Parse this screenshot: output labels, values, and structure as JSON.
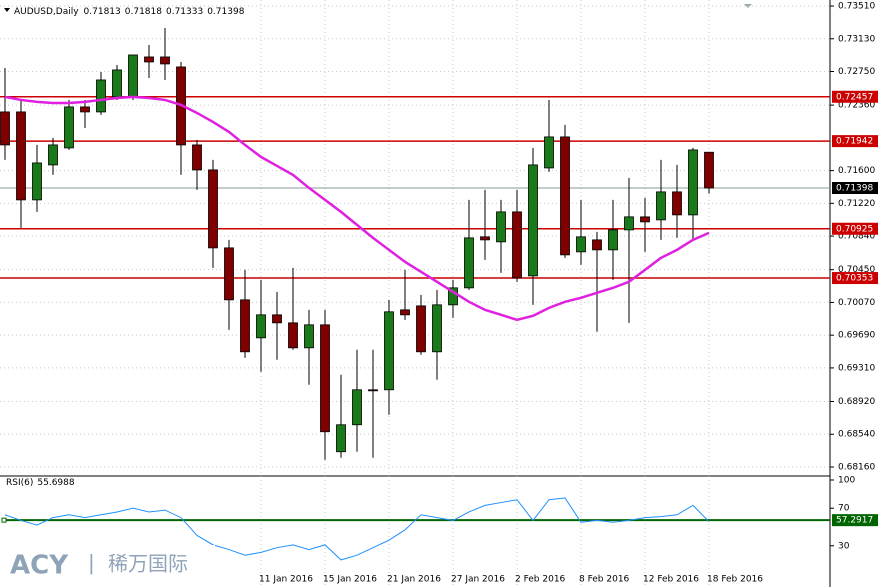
{
  "chart_data": {
    "type": "candlestick",
    "title": "AUDUSD,Daily",
    "categories": [
      null,
      null,
      null,
      null,
      null,
      null,
      null,
      null,
      null,
      null,
      null,
      null,
      null,
      null,
      null,
      null,
      "11 Jan 2016",
      null,
      null,
      null,
      "15 Jan 2016",
      null,
      null,
      null,
      "21 Jan 2016",
      null,
      null,
      null,
      "27 Jan 2016",
      null,
      null,
      null,
      "2 Feb 2016",
      null,
      null,
      null,
      "8 Feb 2016",
      null,
      null,
      null,
      "12 Feb 2016",
      null,
      null,
      null,
      "18 Feb 2016"
    ],
    "series": {
      "open": [
        0.72281,
        0.72281,
        0.7126,
        0.71666,
        0.71863,
        0.72339,
        0.72281,
        0.72455,
        0.72455,
        0.72919,
        0.72919,
        0.72803,
        0.71898,
        0.71608,
        0.70703,
        0.701,
        0.69659,
        0.69926,
        0.69833,
        0.69543,
        0.6981,
        0.68337,
        0.6865,
        0.69056,
        0.69056,
        0.69984,
        0.7003,
        0.69497,
        0.70042,
        0.70239,
        0.70831,
        0.70773,
        0.71121,
        0.70378,
        0.71631,
        0.71991,
        0.70657,
        0.70796,
        0.7068,
        0.70912,
        0.71063,
        0.71028,
        0.71353,
        0.71086,
        0.71813
      ],
      "high": [
        0.72791,
        0.7242,
        0.71898,
        0.71979,
        0.7242,
        0.7242,
        0.72745,
        0.72826,
        0.72942,
        0.73058,
        0.73255,
        0.72861,
        0.71956,
        0.71724,
        0.70796,
        0.70448,
        0.70332,
        0.70193,
        0.70471,
        0.69984,
        0.69984,
        0.6923,
        0.6952,
        0.6952,
        0.701,
        0.70448,
        0.70158,
        0.70216,
        0.70332,
        0.7126,
        0.71376,
        0.7126,
        0.71376,
        0.71863,
        0.7242,
        0.7213,
        0.7126,
        0.70889,
        0.7126,
        0.71515,
        0.71283,
        0.71724,
        0.71666,
        0.71863,
        0.71818
      ],
      "low": [
        0.71724,
        0.70935,
        0.71121,
        0.7155,
        0.7184,
        0.72095,
        0.72246,
        0.7242,
        0.7242,
        0.72675,
        0.72652,
        0.7155,
        0.71376,
        0.70471,
        0.69752,
        0.69427,
        0.69265,
        0.69404,
        0.6952,
        0.69114,
        0.68244,
        0.68267,
        0.68337,
        0.68267,
        0.68766,
        0.69868,
        0.69462,
        0.69172,
        0.69891,
        0.70216,
        0.70564,
        0.70413,
        0.70309,
        0.70042,
        0.71585,
        0.70587,
        0.70506,
        0.69729,
        0.70332,
        0.69833,
        0.70657,
        0.70796,
        0.70819,
        0.70796,
        0.71333
      ],
      "close": [
        0.71898,
        0.7126,
        0.71689,
        0.71898,
        0.72339,
        0.72281,
        0.72652,
        0.72768,
        0.72942,
        0.72861,
        0.72838,
        0.71898,
        0.71608,
        0.70703,
        0.701,
        0.69497,
        0.69926,
        0.69833,
        0.69543,
        0.6981,
        0.68569,
        0.6865,
        0.69056,
        0.69044,
        0.69961,
        0.69926,
        0.69497,
        0.70042,
        0.70239,
        0.70819,
        0.70796,
        0.71121,
        0.70355,
        0.71666,
        0.71991,
        0.70622,
        0.70831,
        0.7068,
        0.70912,
        0.71063,
        0.71005,
        0.71353,
        0.71086,
        0.7184,
        0.71398
      ],
      "up_color": "#1a7a1a",
      "down_color": "#800000"
    },
    "overlay": {
      "color": "#e020e0",
      "values": [
        0.72455,
        0.7242,
        0.72397,
        0.72385,
        0.72385,
        0.72397,
        0.7242,
        0.72443,
        0.72455,
        0.72443,
        0.7242,
        0.72362,
        0.72269,
        0.72165,
        0.72049,
        0.71898,
        0.71759,
        0.71654,
        0.7155,
        0.71399,
        0.7126,
        0.71121,
        0.7097,
        0.70819,
        0.7068,
        0.70541,
        0.70425,
        0.70309,
        0.70193,
        0.70077,
        0.69984,
        0.69926,
        0.69868,
        0.69914,
        0.70007,
        0.70077,
        0.70123,
        0.70181,
        0.70239,
        0.70309,
        0.70448,
        0.70587,
        0.7068,
        0.70796,
        0.70877
      ]
    },
    "ylim": [
      0.68067,
      0.7358
    ],
    "yticks": [
      {
        "value": 0.7351,
        "label": "0.73510"
      },
      {
        "value": 0.7313,
        "label": "0.73130"
      },
      {
        "value": 0.7275,
        "label": "0.72750"
      },
      {
        "value": 0.7236,
        "label": "0.72360"
      },
      {
        "value": 0.716,
        "label": "0.71600"
      },
      {
        "value": 0.7122,
        "label": "0.71220"
      },
      {
        "value": 0.7084,
        "label": "0.70840"
      },
      {
        "value": 0.7045,
        "label": "0.70450"
      },
      {
        "value": 0.7007,
        "label": "0.70070"
      },
      {
        "value": 0.6969,
        "label": "0.69690"
      },
      {
        "value": 0.6931,
        "label": "0.69310"
      },
      {
        "value": 0.6892,
        "label": "0.68920"
      },
      {
        "value": 0.6854,
        "label": "0.68540"
      },
      {
        "value": 0.6816,
        "label": "0.68160"
      }
    ],
    "levels": [
      {
        "value": 0.72457,
        "color": "#cc0000"
      },
      {
        "value": 0.71942,
        "color": "#cc0000"
      },
      {
        "value": 0.70925,
        "color": "#cc0000"
      },
      {
        "value": 0.70353,
        "color": "#cc0000"
      }
    ],
    "grid": true,
    "rsi": {
      "label": "RSI(6)",
      "color": "#1e90ff",
      "ylim": [
        0,
        100
      ],
      "yticks": [
        100,
        70,
        30
      ],
      "level": 57.2917,
      "level_color": "#006400",
      "values": [
        63,
        57,
        52,
        60,
        63,
        60,
        63,
        66,
        70,
        66,
        68,
        60,
        41,
        31,
        26,
        20,
        23,
        28,
        31,
        26,
        31,
        15,
        20,
        28,
        36,
        47,
        63,
        60,
        57,
        66,
        73,
        76,
        79,
        57,
        79,
        81,
        55,
        57,
        55,
        57,
        60,
        61,
        63,
        73,
        55.6988
      ]
    }
  },
  "logo": {
    "brand": "ACY",
    "separator": "|",
    "name": "稀万国际"
  }
}
